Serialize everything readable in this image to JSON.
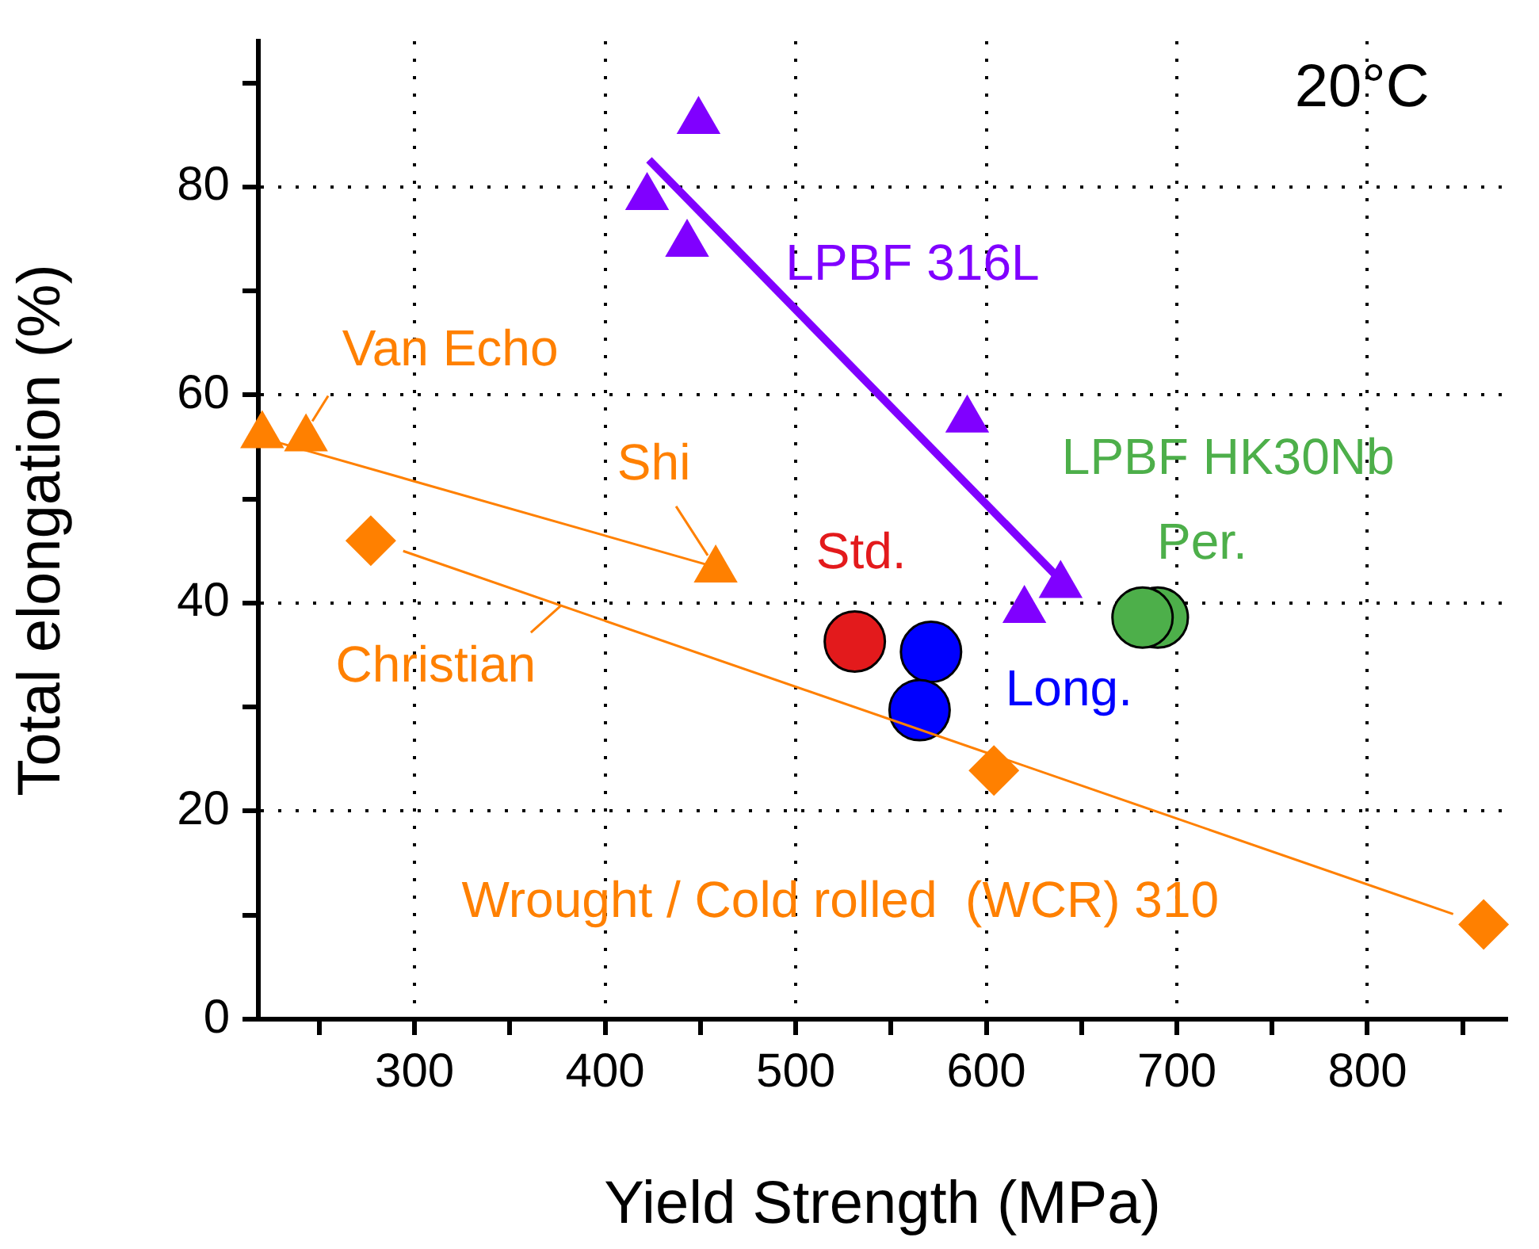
{
  "chart_data": {
    "type": "scatter",
    "xlabel": "Yield Strength (MPa)",
    "ylabel": "Total elongation (%)",
    "xlim": [
      218,
      873
    ],
    "ylim": [
      0,
      94
    ],
    "xticks": [
      {
        "value": 250,
        "label": null
      },
      300,
      {
        "value": 350,
        "label": null
      },
      400,
      {
        "value": 450,
        "label": null
      },
      500,
      {
        "value": 550,
        "label": null
      },
      600,
      {
        "value": 650,
        "label": null
      },
      700,
      {
        "value": 750,
        "label": null
      },
      800,
      {
        "value": 850,
        "label": null
      }
    ],
    "yticks": [
      0,
      {
        "value": 10,
        "label": null
      },
      20,
      {
        "value": 30,
        "label": null
      },
      40,
      {
        "value": 50,
        "label": null
      },
      60,
      {
        "value": 70,
        "label": null
      },
      80,
      {
        "value": 90,
        "label": null
      }
    ],
    "grid": true,
    "series": [
      {
        "name": "LPBF 316L",
        "marker": "triangle",
        "color": "#8000ff",
        "x": [
          449,
          422,
          443,
          590,
          620,
          639
        ],
        "values": [
          86.3,
          79,
          74.5,
          57.6,
          39.3,
          41.7
        ]
      },
      {
        "type": "line",
        "marker": "none",
        "color": "#8000ff",
        "x": [
          423,
          639
        ],
        "values": [
          82.6,
          42.2
        ]
      },
      {
        "name": "Van Echo",
        "marker": "triangle",
        "color": "#ff8000",
        "x": [
          220,
          243
        ],
        "values": [
          56.1,
          55.8
        ]
      },
      {
        "name": "Shi",
        "marker": "triangle",
        "color": "#ff8000",
        "x": [
          458
        ],
        "values": [
          43.2
        ]
      },
      {
        "type": "line",
        "marker": "none",
        "color": "#ff8000",
        "x": [
          227,
          455
        ],
        "values": [
          55.5,
          43.6
        ]
      },
      {
        "name": "Christian",
        "marker": "diamond",
        "color": "#ff8000",
        "x": [
          277,
          604,
          861
        ],
        "values": [
          46,
          23.9,
          9.1
        ]
      },
      {
        "type": "line",
        "marker": "none",
        "color": "#ff8000",
        "x": [
          294,
          845
        ],
        "values": [
          45,
          10.1
        ]
      },
      {
        "name": "Std.",
        "marker": "circle",
        "color": "#e31a1c",
        "x": [
          531
        ],
        "values": [
          36.3
        ]
      },
      {
        "name": "Long.",
        "marker": "circle",
        "color": "#0000ff",
        "x": [
          571,
          565
        ],
        "values": [
          35.3,
          29.7
        ]
      },
      {
        "name": "Per.",
        "marker": "circle",
        "color": "#4daf4a",
        "x": [
          690,
          682
        ],
        "values": [
          38.6,
          38.6
        ]
      }
    ],
    "annotations": [
      "20°C",
      "LPBF HK30Nb",
      "Wrought / Cold rolled  (WCR) 310"
    ]
  }
}
